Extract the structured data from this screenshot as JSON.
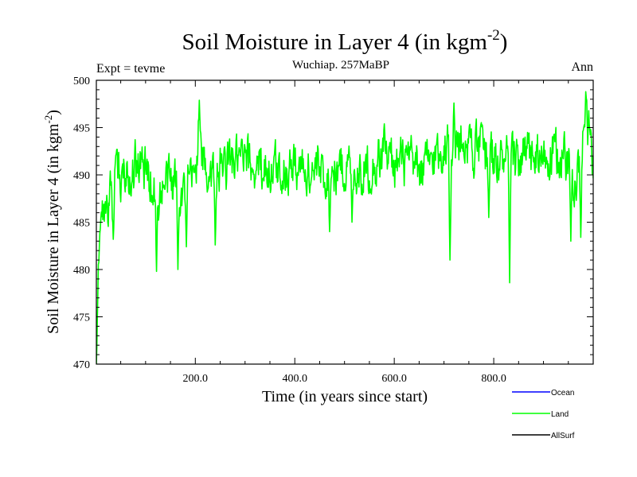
{
  "chart_data": {
    "type": "line",
    "title_main": "Soil Moisture in Layer 4 (in kgm",
    "title_sup": "-2",
    "title_close": ")",
    "subtitle": "Wuchiap. 257MaBP",
    "left_label": "Expt = tevme",
    "right_label": "Ann",
    "xlabel": "Time (in years since start)",
    "ylabel_main": "Soil Moisture in Layer 4 (in kgm",
    "ylabel_sup": "-2",
    "ylabel_close": ")",
    "xlim": [
      1,
      1000
    ],
    "ylim": [
      470,
      500
    ],
    "x_ticks": [
      200,
      400,
      600,
      800
    ],
    "x_tick_labels": [
      "200.0",
      "400.0",
      "600.0",
      "800.0"
    ],
    "y_ticks": [
      470,
      475,
      480,
      485,
      490,
      495,
      500
    ],
    "y_tick_labels": [
      "470",
      "475",
      "480",
      "485",
      "490",
      "495",
      "500"
    ],
    "legend": [
      {
        "name": "Ocean",
        "color": "#0000ff"
      },
      {
        "name": "Land",
        "color": "#00ff00"
      },
      {
        "name": "AllSurf",
        "color": "#000000"
      }
    ],
    "series": [
      {
        "name": "Land",
        "color": "#00ff00",
        "x_start": 1,
        "x_step": 1,
        "length": 1000,
        "anchors_x": [
          1,
          5,
          10,
          20,
          30,
          40,
          60,
          80,
          100,
          115,
          125,
          140,
          165,
          180,
          200,
          205,
          215,
          240,
          270,
          300,
          330,
          360,
          400,
          430,
          460,
          500,
          540,
          580,
          620,
          660,
          700,
          720,
          740,
          760,
          800,
          830,
          860,
          900,
          940,
          960,
          975,
          985,
          1000
        ],
        "anchors_y": [
          470,
          480,
          485.5,
          486.5,
          487.5,
          489,
          490.5,
          491.5,
          490.5,
          489,
          487.5,
          489,
          489.5,
          488,
          490,
          494,
          491,
          490,
          491.5,
          491,
          491,
          490.5,
          491,
          490.5,
          490,
          491,
          490.5,
          492,
          491,
          490.5,
          493,
          493,
          494,
          493,
          492,
          491,
          492,
          491.5,
          492,
          490.5,
          491,
          496,
          492
        ],
        "noise_amplitude": 2.2,
        "noise_seed": 20,
        "dips": [
          {
            "x": 35,
            "y": 483.2
          },
          {
            "x": 122,
            "y": 479.8
          },
          {
            "x": 165,
            "y": 480.0
          },
          {
            "x": 182,
            "y": 482.4
          },
          {
            "x": 240,
            "y": 482.6
          },
          {
            "x": 470,
            "y": 484.0
          },
          {
            "x": 515,
            "y": 485.0
          },
          {
            "x": 712,
            "y": 481.0
          },
          {
            "x": 790,
            "y": 485.5
          },
          {
            "x": 832,
            "y": 478.6
          },
          {
            "x": 955,
            "y": 483.0
          },
          {
            "x": 975,
            "y": 483.4
          }
        ],
        "peaks": [
          {
            "x": 208,
            "y": 497.9
          },
          {
            "x": 580,
            "y": 495.4
          },
          {
            "x": 720,
            "y": 497.6
          },
          {
            "x": 985,
            "y": 498.8
          },
          {
            "x": 995,
            "y": 494.8
          }
        ]
      }
    ]
  }
}
